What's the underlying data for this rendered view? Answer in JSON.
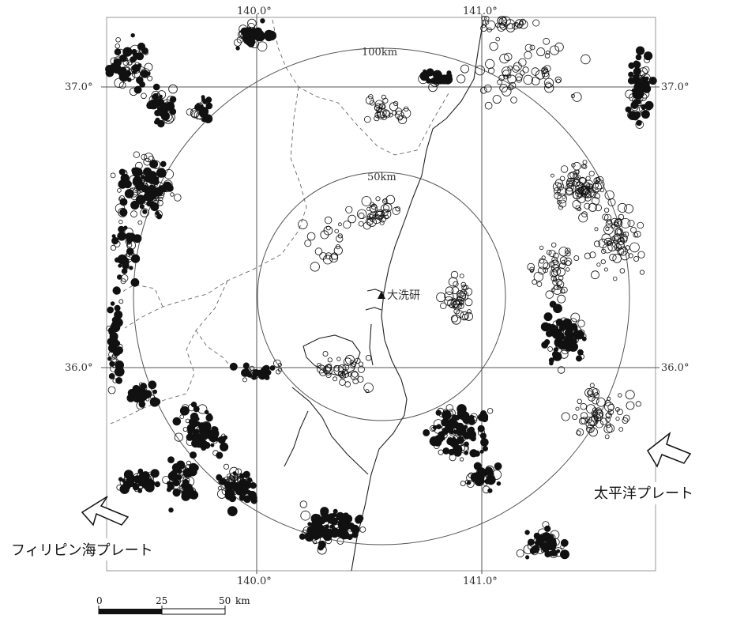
{
  "map": {
    "graticule": {
      "lon_labels": [
        "140.0°",
        "141.0°"
      ],
      "lat_labels": [
        "37.0°",
        "36.0°"
      ]
    },
    "range_circles": [
      "100km",
      "50km"
    ],
    "station": {
      "label": "大洗研",
      "marker": "triangle-icon"
    },
    "plates": {
      "philippine": "フィリピン海プレート",
      "pacific": "太平洋プレート"
    },
    "scale_bar": {
      "ticks": [
        "0",
        "25",
        "50"
      ],
      "unit": "km"
    },
    "colors": {
      "ink": "#111111",
      "frame": "#555555",
      "coast": "#222222"
    }
  }
}
